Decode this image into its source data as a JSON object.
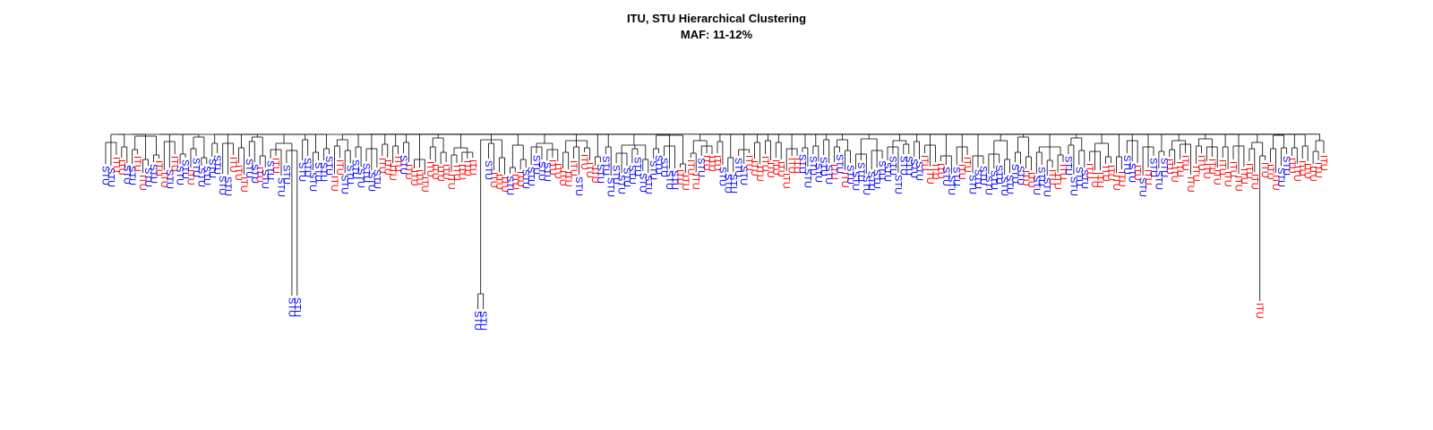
{
  "plot": {
    "title_line1": "ITU, STU Hierarchical Clustering",
    "title_line2": "MAF: 11-12%"
  },
  "colors": {
    "ITU": "#ff0000",
    "STU": "#0000ff",
    "branch": "#000000"
  },
  "dendrogram": {
    "leaf_order": "STU STU ITU ITU STU STU ITU ITU STU STU ITU ITU STU ITU STU STU ITU STU STU STU STU STU STU STU ITU ITU ITU STU STU ITU STU STU ITU STU STU STU STU STU STU STU STU STU STU ITU ITU STU STU STU STU STU STU STU ITU ITU ITU ITU STU ITU ITU ITU ITU ITU ITU ITU ITU ITU ITU ITU ITU ITU STU STU STU ITU ITU ITU STU ITU ITU STU STU STU STU STU ITU ITU ITU ITU ITU STU ITU ITU ITU STU STU STU STU STU STU STU STU STU STU STU STU STU STU STU ITU ITU ITU ITU STU ITU ITU ITU STU STU STU STU STU ITU ITU ITU ITU ITU ITU ITU ITU ITU ITU STU STU STU STU STU STU ITU STU ITU STU STU STU STU STU STU STU STU STU STU STU STU STU STU ITU ITU ITU ITU STU STU STU ITU ITU STU STU STU STU STU STU STU STU STU STU ITU ITU STU STU STU ITU ITU ITU STU STU STU STU ITU ITU ITU ITU ITU ITU ITU STU STU ITU STU ITU STU STU STU ITU ITU ITU ITU ITU ITU ITU ITU ITU ITU ITU ITU ITU ITU ITU ITU ITU ITU ITU ITU ITU STU STU ITU ITU ITU ITU ITU ITU ITU"
  }
}
